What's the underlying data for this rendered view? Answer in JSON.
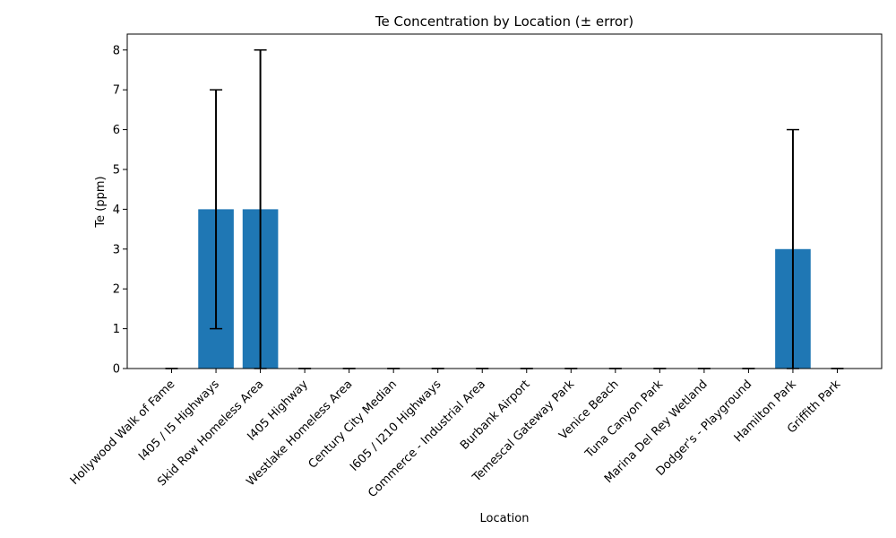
{
  "chart_data": {
    "type": "bar",
    "title": "Te Concentration by Location (± error)",
    "xlabel": "Location",
    "ylabel": "Te (ppm)",
    "categories": [
      "Hollywood Walk of Fame",
      "I405 / I5 Highways",
      "Skid Row Homeless Area",
      "I405 Highway",
      "Westlake Homeless Area",
      "Century City Median",
      "I605 / I210 Highways",
      "Commerce - Industrial Area",
      "Burbank Airport",
      "Temescal Gateway Park",
      "Venice Beach",
      "Tuna Canyon Park",
      "Marina Del Rey Wetland",
      "Dodger's - Playground",
      "Hamilton Park",
      "Griffith Park"
    ],
    "values": [
      0,
      4,
      4,
      0,
      0,
      0,
      0,
      0,
      0,
      0,
      0,
      0,
      0,
      0,
      3,
      0
    ],
    "errors": [
      0,
      3,
      4,
      0,
      0,
      0,
      0,
      0,
      0,
      0,
      0,
      0,
      0,
      0,
      3,
      0
    ],
    "ylim": [
      0,
      8.4
    ],
    "yticks": [
      0,
      1,
      2,
      3,
      4,
      5,
      6,
      7,
      8
    ],
    "grid": false,
    "bar_color": "#1f77b4",
    "error_color": "#000000"
  }
}
